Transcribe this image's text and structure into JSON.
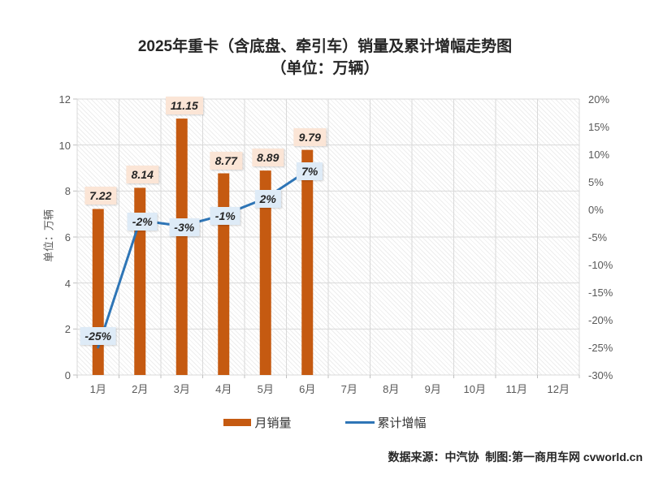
{
  "title": {
    "line1": "2025年重卡（含底盘、牵引车）销量及累计增幅走势图",
    "line2": "（单位：万辆）"
  },
  "colors": {
    "bar": "#C55A11",
    "line": "#2E75B6",
    "bar_label_bg": "#FBE5D6",
    "line_label_bg": "#DEEBF7",
    "grid": "#D9D9D9",
    "tick": "#BFBFBF",
    "axis_text": "#595959"
  },
  "y_axis_left": {
    "title": "单位：万辆",
    "ticks": [
      "12",
      "10",
      "8",
      "6",
      "4",
      "2",
      "0"
    ]
  },
  "y_axis_right": {
    "ticks": [
      "20%",
      "15%",
      "10%",
      "5%",
      "0%",
      "-5%",
      "-10%",
      "-15%",
      "-20%",
      "-25%",
      "-30%"
    ]
  },
  "legend": {
    "items": [
      {
        "label": "月销量",
        "type": "bar"
      },
      {
        "label": "累计增幅",
        "type": "line"
      }
    ]
  },
  "footer": {
    "text": "数据来源：中汽协  制图:第一商用车网 cvworld.cn"
  },
  "chart_data": {
    "type": "combo",
    "title": "2025年重卡（含底盘、牵引车）销量及累计增幅走势图",
    "subtitle": "（单位：万辆）",
    "categories": [
      "1月",
      "2月",
      "3月",
      "4月",
      "5月",
      "6月",
      "7月",
      "8月",
      "9月",
      "10月",
      "11月",
      "12月"
    ],
    "series": [
      {
        "name": "月销量",
        "type": "bar",
        "axis": "left",
        "values": [
          7.22,
          8.14,
          11.15,
          8.77,
          8.89,
          9.79,
          null,
          null,
          null,
          null,
          null,
          null
        ],
        "data_labels": [
          "7.22",
          "8.14",
          "11.15",
          "8.77",
          "8.89",
          "9.79"
        ]
      },
      {
        "name": "累计增幅",
        "type": "line",
        "axis": "right",
        "values": [
          -25,
          -2,
          -3,
          -1,
          2,
          7,
          null,
          null,
          null,
          null,
          null,
          null
        ],
        "data_labels": [
          "-25%",
          "-2%",
          "-3%",
          "-1%",
          "2%",
          "7%"
        ]
      }
    ],
    "left_axis": {
      "label": "单位：万辆",
      "range": [
        0,
        12
      ],
      "tick_step": 2
    },
    "right_axis": {
      "range": [
        -30,
        20
      ],
      "tick_step": 5,
      "format": "percent"
    },
    "grid": true,
    "legend_position": "bottom"
  }
}
